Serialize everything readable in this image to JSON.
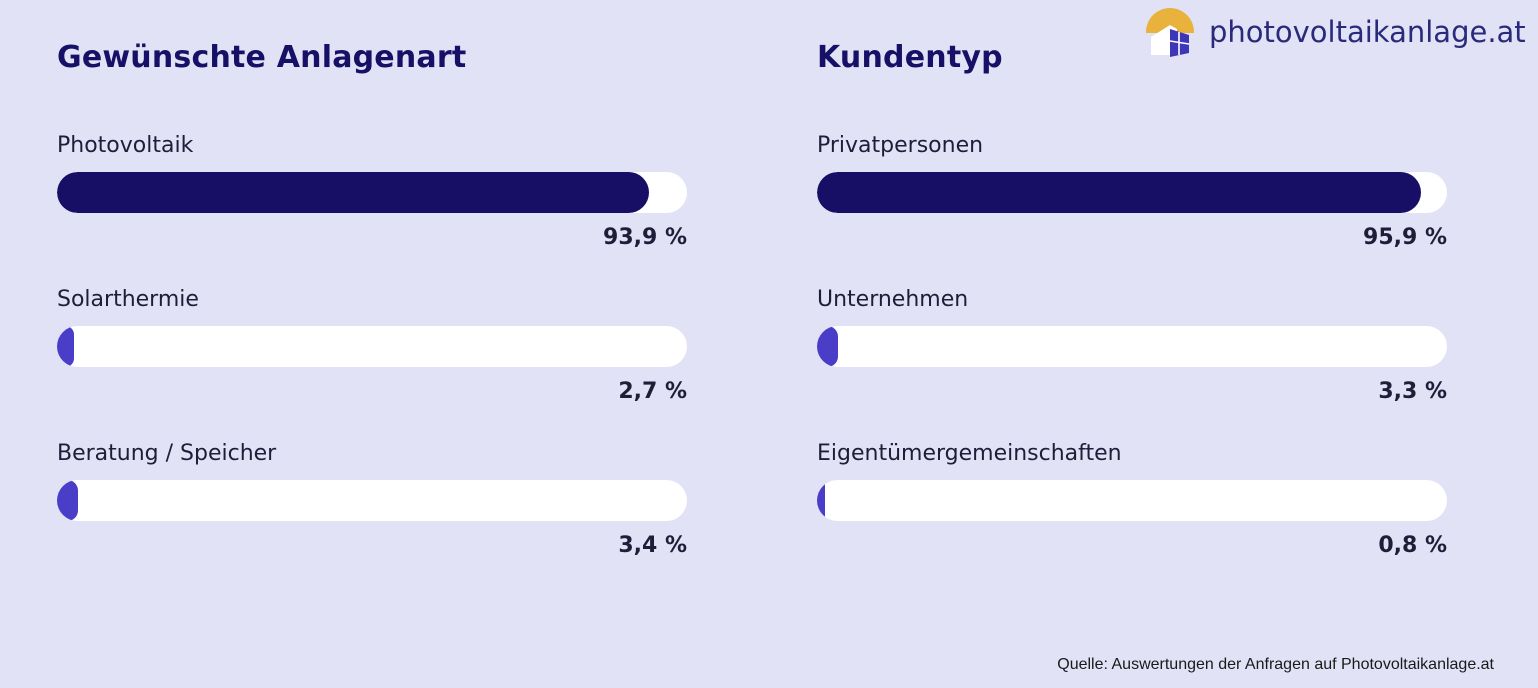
{
  "brand": {
    "logo_text": "photovoltaikanlage.at",
    "logo_icon": "sun-house-icon",
    "colors": {
      "background": "#e1e2f6",
      "major_bar": "#170f66",
      "minor_bar": "#4a3dc8",
      "track": "#ffffff",
      "sun": "#e8b23c"
    }
  },
  "chart_data": [
    {
      "type": "bar",
      "orientation": "horizontal",
      "title": "Gewünschte Anlagenart",
      "unit": "%",
      "xlim": [
        0,
        100
      ],
      "categories": [
        "Photovoltaik",
        "Solarthermie",
        "Beratung / Speicher"
      ],
      "values": [
        93.9,
        2.7,
        3.4
      ],
      "value_labels": [
        "93,9 %",
        "2,7 %",
        "3,4 %"
      ]
    },
    {
      "type": "bar",
      "orientation": "horizontal",
      "title": "Kundentyp",
      "unit": "%",
      "xlim": [
        0,
        100
      ],
      "categories": [
        "Privatpersonen",
        "Unternehmen",
        "Eigentümergemeinschaften"
      ],
      "values": [
        95.9,
        3.3,
        0.8
      ],
      "value_labels": [
        "95,9 %",
        "3,3 %",
        "0,8 %"
      ]
    }
  ],
  "source": "Quelle: Auswertungen der Anfragen auf Photovoltaikanlage.at"
}
